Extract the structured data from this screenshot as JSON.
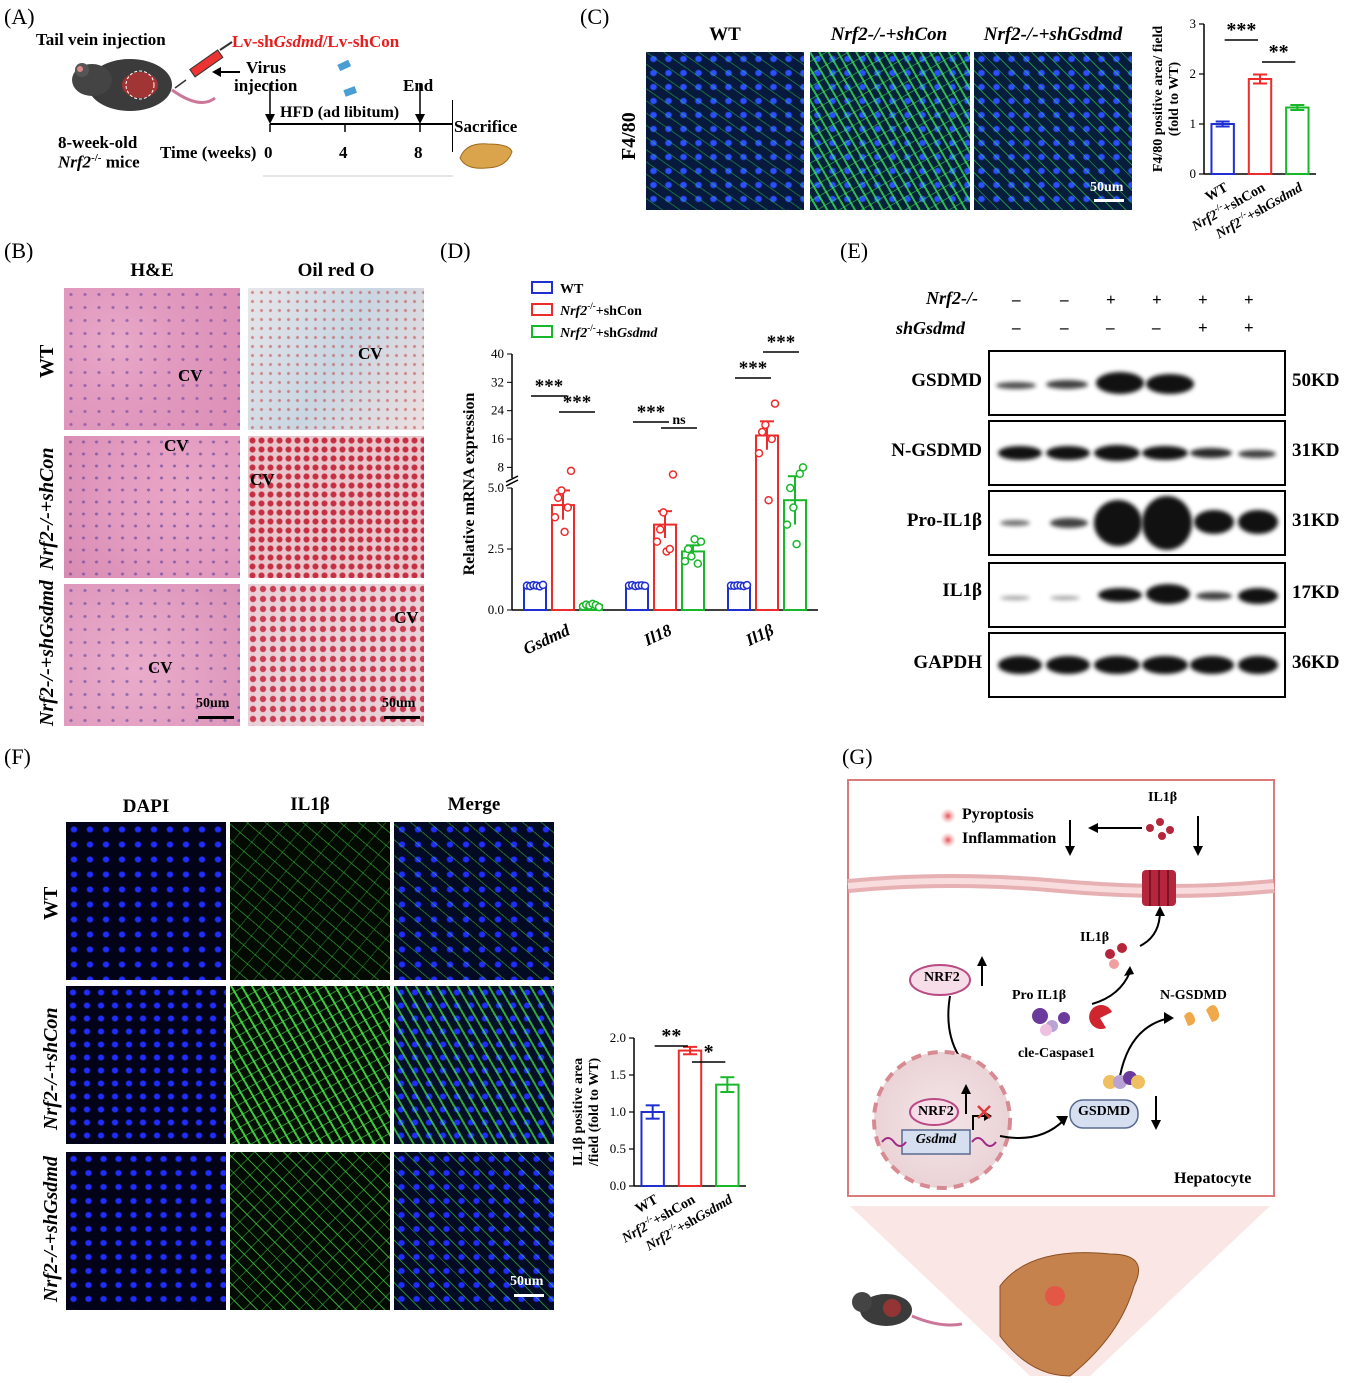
{
  "panelA": {
    "label": "(A)",
    "tail_vein": "Tail vein injection",
    "construct_prefix": "Lv-sh",
    "construct_gene": "Gsdmd",
    "construct_suffix": "/Lv-shCon",
    "virus": "Virus",
    "injection": "injection",
    "end": "End",
    "mice_age": "8-week-old",
    "mice_gene": "Nrf2",
    "mice_sup": "-/-",
    "mice_suffix": " mice",
    "time_label": "Time (weeks)",
    "ticks": [
      "0",
      "4",
      "8"
    ],
    "hfd": "HFD (ad libitum)",
    "sacrifice": "Sacrifice"
  },
  "panelB": {
    "label": "(B)",
    "col1": "H&E",
    "col2": "Oil red O",
    "rows": [
      "WT",
      "Nrf2-/-+shCon",
      "Nrf2-/-+shGsdmd"
    ],
    "cv": "CV",
    "scale": "50um"
  },
  "panelC": {
    "label": "(C)",
    "cols": [
      "WT",
      "Nrf2-/-+shCon",
      "Nrf2-/-+shGsdmd"
    ],
    "row": "F4/80",
    "scale": "50um"
  },
  "panelD": {
    "label": "(D)"
  },
  "panelE": {
    "label": "(E)",
    "header1": "Nrf2-/-",
    "header2": "shGsdmd",
    "signs1": [
      "–",
      "–",
      "+",
      "+",
      "+",
      "+"
    ],
    "signs2": [
      "–",
      "–",
      "–",
      "–",
      "+",
      "+"
    ],
    "rows": [
      {
        "name": "GSDMD",
        "kd": "50KD"
      },
      {
        "name": "N-GSDMD",
        "kd": "31KD"
      },
      {
        "name": "Pro-IL1β",
        "kd": "31KD"
      },
      {
        "name": "IL1β",
        "kd": "17KD"
      },
      {
        "name": "GAPDH",
        "kd": "36KD"
      }
    ]
  },
  "panelF": {
    "label": "(F)",
    "cols": [
      "DAPI",
      "IL1β",
      "Merge"
    ],
    "rows": [
      "WT",
      "Nrf2-/-+shCon",
      "Nrf2-/-+shGsdmd"
    ],
    "scale": "50um"
  },
  "panelG": {
    "label": "(G)",
    "pyroptosis": "Pyroptosis",
    "inflammation": "Inflammation",
    "il1b_top": "IL1β",
    "il1b_mid": "IL1β",
    "pro_il1b": "Pro IL1β",
    "caspase": "cle-Caspase1",
    "ngsdmd": "N-GSDMD",
    "nrf2": "NRF2",
    "nrf2_nuc": "NRF2",
    "gene": "Gsdmd",
    "gsdmd": "GSDMD",
    "cell": "Hepatocyte"
  },
  "colors": {
    "wt": "#1f2fd1",
    "shcon": "#ee2b2b",
    "shgsdmd": "#19b82a",
    "construct": "#e81c1c"
  },
  "chart_data": [
    {
      "id": "C",
      "type": "bar",
      "ylabel": "F4/80 positive area/ field (fold to WT)",
      "ylim": [
        0,
        3
      ],
      "yticks": [
        0,
        1,
        2,
        3
      ],
      "categories": [
        "WT",
        "Nrf2-/-+shCon",
        "Nrf2-/-+shGsdmd"
      ],
      "values": [
        1.0,
        1.9,
        1.33
      ],
      "errors": [
        0.05,
        0.09,
        0.05
      ],
      "significance": [
        {
          "from": 0,
          "to": 1,
          "label": "***"
        },
        {
          "from": 1,
          "to": 2,
          "label": "**"
        }
      ]
    },
    {
      "id": "D",
      "type": "bar",
      "ylabel": "Relative mRNA expression",
      "yticks_lower": [
        0.0,
        2.5,
        5.0
      ],
      "yticks_upper": [
        8,
        16,
        24,
        32,
        40
      ],
      "legend": [
        "WT",
        "Nrf2-/-+shCon",
        "Nrf2-/-+shGsdmd"
      ],
      "legend_position": "top-left",
      "categories": [
        "Gsdmd",
        "Il18",
        "Il1β"
      ],
      "series": [
        {
          "name": "WT",
          "values": [
            1.0,
            1.0,
            1.0
          ],
          "errors": [
            0.03,
            0.03,
            0.03
          ],
          "points": [
            [
              1.0,
              0.98,
              1.02,
              1.0,
              0.97,
              1.03
            ],
            [
              1.0,
              1.02,
              0.98,
              1.0,
              1.01,
              0.99
            ],
            [
              1.0,
              0.99,
              1.01,
              1.0,
              0.98,
              1.02
            ]
          ]
        },
        {
          "name": "Nrf2-/-+shCon",
          "values": [
            4.3,
            3.5,
            17.0
          ],
          "errors": [
            0.6,
            0.55,
            4.0
          ],
          "points": [
            [
              3.8,
              4.6,
              4.9,
              3.2,
              4.2,
              7.0
            ],
            [
              2.8,
              3.3,
              4.0,
              2.4,
              2.5,
              6.0
            ],
            [
              12.0,
              18.0,
              20.0,
              4.5,
              16.0,
              26.0
            ]
          ]
        },
        {
          "name": "Nrf2-/-+shGsdmd",
          "values": [
            0.2,
            2.4,
            4.5
          ],
          "errors": [
            0.05,
            0.25,
            1.0
          ],
          "points": [
            [
              0.15,
              0.22,
              0.18,
              0.25,
              0.2,
              0.12
            ],
            [
              2.0,
              2.5,
              2.2,
              2.9,
              1.9,
              2.8
            ],
            [
              3.5,
              5.0,
              4.2,
              2.7,
              6.2,
              8.0
            ]
          ]
        }
      ],
      "significance": [
        {
          "group": 0,
          "from": 0,
          "to": 1,
          "label": "***"
        },
        {
          "group": 0,
          "from": 1,
          "to": 2,
          "label": "***"
        },
        {
          "group": 1,
          "from": 0,
          "to": 1,
          "label": "***"
        },
        {
          "group": 1,
          "from": 1,
          "to": 2,
          "label": "ns"
        },
        {
          "group": 2,
          "from": 0,
          "to": 1,
          "label": "***"
        },
        {
          "group": 2,
          "from": 1,
          "to": 2,
          "label": "***"
        }
      ]
    },
    {
      "id": "F",
      "type": "bar",
      "ylabel": "IL1β positive  area /field (fold to WT)",
      "ylim": [
        0,
        2.0
      ],
      "yticks": [
        0.0,
        0.5,
        1.0,
        1.5,
        2.0
      ],
      "categories": [
        "WT",
        "Nrf2-/-+shCon",
        "Nrf2-/-+shGsdmd"
      ],
      "values": [
        1.0,
        1.83,
        1.37
      ],
      "errors": [
        0.09,
        0.05,
        0.1
      ],
      "significance": [
        {
          "from": 0,
          "to": 1,
          "label": "**"
        },
        {
          "from": 1,
          "to": 2,
          "label": "*"
        }
      ]
    }
  ]
}
